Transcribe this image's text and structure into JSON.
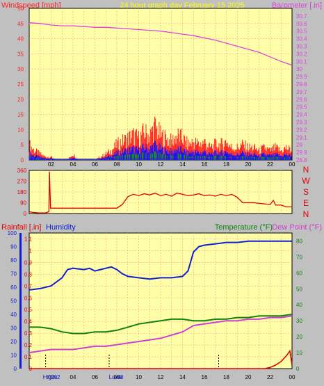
{
  "colors": {
    "background": "#c0c0c0",
    "plot_bg": "#ffffa8",
    "grid": "#ff9999",
    "wind": "#ff2020",
    "gust_blue": "#1010ff",
    "gust_green": "#10a010",
    "barometer": "#e040e0",
    "direction": "#e00000",
    "humidity": "#1020d0",
    "temperature": "#108010",
    "dewpoint": "#d040d0",
    "rainfall": "#e00000",
    "title": "#ffff00"
  },
  "header": {
    "left_label": "Windspeed [mph]",
    "title": "24 hour graph day   February 15 2025",
    "right_label": "Barometer [.in]"
  },
  "bottom_header": {
    "rainfall": "Rainfall [.in]",
    "humidity": "Humidity",
    "temperature": "Temperature (°F)",
    "dewpoint": "Dew Point (°F)"
  },
  "compass": [
    "N",
    "W",
    "S",
    "E",
    "N"
  ],
  "x_ticks": [
    "02",
    "04",
    "06",
    "08",
    "10",
    "12",
    "14",
    "16",
    "18",
    "20",
    "22",
    "00"
  ],
  "markers": {
    "high": "Highs",
    "high_overlap": "02",
    "low": "Lows",
    "low_overlap": "08"
  },
  "chart_data": [
    {
      "type": "line",
      "title": "24 hour graph day   February 15 2025",
      "x_unit": "hours",
      "xlim": [
        0,
        24
      ],
      "ylabel": "Windspeed [mph]",
      "ylim": [
        0,
        50
      ],
      "yticks": [
        0,
        5,
        10,
        15,
        20,
        25,
        30,
        35,
        40,
        45,
        50
      ],
      "ylabel_right": "Barometer [.in]",
      "ylim_right": [
        28.8,
        30.8
      ],
      "yticks_right": [
        "28.8",
        "28.9",
        "29",
        "29.1",
        "29.2",
        "29.3",
        "29.4",
        "29.5",
        "29.6",
        "29.7",
        "29.8",
        "29.9",
        "30",
        "30.1",
        "30.2",
        "30.3",
        "30.4",
        "30.5",
        "30.6",
        "30.7"
      ],
      "series": [
        {
          "name": "Barometer [.in]",
          "axis": "right",
          "x": [
            0,
            1,
            2,
            3,
            4,
            5,
            6,
            7,
            8,
            9,
            10,
            11,
            12,
            13,
            14,
            15,
            16,
            17,
            18,
            19,
            20,
            21,
            22,
            23,
            24
          ],
          "values": [
            30.61,
            30.6,
            30.58,
            30.57,
            30.57,
            30.56,
            30.55,
            30.55,
            30.54,
            30.53,
            30.52,
            30.51,
            30.5,
            30.48,
            30.46,
            30.44,
            30.41,
            30.38,
            30.34,
            30.3,
            30.26,
            30.22,
            30.16,
            30.1,
            30.05
          ]
        },
        {
          "name": "Windspeed",
          "axis": "left",
          "x": [
            0,
            0.5,
            1,
            1.5,
            2,
            2.5,
            3,
            3.5,
            4,
            4.5,
            5,
            5.5,
            6,
            6.5,
            7,
            7.5,
            8,
            8.5,
            9,
            9.5,
            10,
            10.5,
            11,
            11.5,
            12,
            12.5,
            13,
            13.5,
            14,
            14.5,
            15,
            15.5,
            16,
            16.5,
            17,
            17.5,
            18,
            18.5,
            19,
            19.5,
            20,
            20.5,
            21,
            21.5,
            22,
            22.5,
            23,
            23.5,
            24
          ],
          "values": [
            5,
            3,
            2,
            1,
            1,
            0,
            0,
            0,
            2,
            0,
            0,
            0,
            0,
            1,
            2,
            3,
            5,
            6,
            7,
            8,
            7,
            9,
            8,
            11,
            8,
            7,
            6,
            8,
            7,
            5,
            6,
            5,
            6,
            4,
            5,
            5,
            6,
            4,
            4,
            5,
            4,
            4,
            3,
            4,
            3,
            4,
            3,
            4,
            3
          ]
        }
      ]
    },
    {
      "type": "line",
      "ylabel": "Wind direction",
      "ylim": [
        0,
        360
      ],
      "yticks": [
        0,
        90,
        180,
        270,
        360
      ],
      "series": [
        {
          "name": "Wind direction",
          "x": [
            0,
            0.3,
            0.9,
            1.5,
            1.8,
            1.85,
            1.95,
            2,
            3,
            5,
            7,
            8,
            8.5,
            9,
            9.5,
            10,
            10.5,
            11,
            11.5,
            12,
            12.5,
            13,
            13.5,
            14,
            14.5,
            15,
            15.5,
            16,
            16.5,
            17,
            17.5,
            18,
            18.5,
            19,
            19.5,
            20,
            20.5,
            21,
            21.5,
            22,
            22.3,
            22.5,
            23,
            23.5,
            24
          ],
          "values": [
            15,
            10,
            5,
            5,
            15,
            350,
            45,
            45,
            45,
            45,
            45,
            45,
            75,
            140,
            160,
            150,
            165,
            155,
            170,
            150,
            160,
            145,
            170,
            160,
            150,
            155,
            165,
            150,
            155,
            145,
            160,
            150,
            160,
            135,
            90,
            90,
            90,
            85,
            80,
            75,
            110,
            70,
            70,
            55,
            55
          ]
        }
      ]
    },
    {
      "type": "line",
      "ylabel_left": "Rainfall [.in]",
      "ylim_rain": [
        0,
        1.15
      ],
      "yticks_rain": [
        "0",
        "0.1",
        "0.2",
        "0.3",
        "0.4",
        "0.5",
        "0.6",
        "0.7",
        "0.8",
        "0.9",
        "1",
        "1.1"
      ],
      "ylabel_humidity": "Humidity",
      "ylim_humidity": [
        0,
        100
      ],
      "yticks_humidity": [
        0,
        10,
        20,
        30,
        40,
        50,
        60,
        70,
        80,
        90,
        100
      ],
      "ylabel_right": "Temperature (°F)  Dew Point (°F)",
      "ylim_right": [
        0,
        85
      ],
      "yticks_right": [
        0,
        10,
        20,
        30,
        40,
        50,
        60,
        70,
        80
      ],
      "series": [
        {
          "name": "Humidity",
          "axis": "humidity",
          "x": [
            0,
            1,
            2,
            3,
            3.5,
            4,
            5,
            5.5,
            6,
            6.5,
            7,
            7.5,
            8,
            8.5,
            9,
            10,
            11,
            12,
            13,
            14,
            14.5,
            15,
            15.5,
            16,
            17,
            18,
            19,
            20,
            21,
            22,
            23,
            24
          ],
          "values": [
            58,
            59,
            61,
            67,
            73,
            74,
            73,
            74,
            72,
            73,
            74,
            75,
            73,
            70,
            68,
            67,
            66,
            67,
            67,
            68,
            72,
            86,
            90,
            91,
            92,
            93,
            93,
            94,
            94,
            94,
            94,
            94
          ]
        },
        {
          "name": "Temperature (°F)",
          "axis": "right",
          "x": [
            0,
            1,
            2,
            3,
            4,
            5,
            6,
            7,
            8,
            9,
            10,
            11,
            12,
            13,
            14,
            15,
            16,
            17,
            18,
            19,
            20,
            21,
            22,
            23,
            24
          ],
          "values": [
            26,
            26,
            25,
            23,
            22,
            22,
            23,
            23,
            24,
            26,
            28,
            29,
            30,
            31,
            31,
            30,
            30,
            31,
            31,
            32,
            32,
            33,
            33,
            33,
            34
          ]
        },
        {
          "name": "Dew Point (°F)",
          "axis": "right",
          "x": [
            0,
            1,
            2,
            3,
            4,
            5,
            6,
            7,
            8,
            9,
            10,
            11,
            12,
            13,
            14,
            15,
            16,
            17,
            18,
            19,
            20,
            21,
            22,
            23,
            24
          ],
          "values": [
            10,
            11,
            12,
            12,
            12,
            13,
            14,
            14,
            15,
            16,
            17,
            18,
            19,
            21,
            23,
            27,
            28,
            29,
            30,
            30,
            31,
            31,
            32,
            32,
            33
          ]
        },
        {
          "name": "Rainfall [.in]",
          "axis": "rain",
          "x": [
            0,
            21.5,
            22,
            22.5,
            23,
            23.5,
            23.8,
            24
          ],
          "values": [
            0,
            0,
            0.01,
            0.03,
            0.06,
            0.11,
            0.15,
            0.03
          ]
        }
      ]
    }
  ]
}
